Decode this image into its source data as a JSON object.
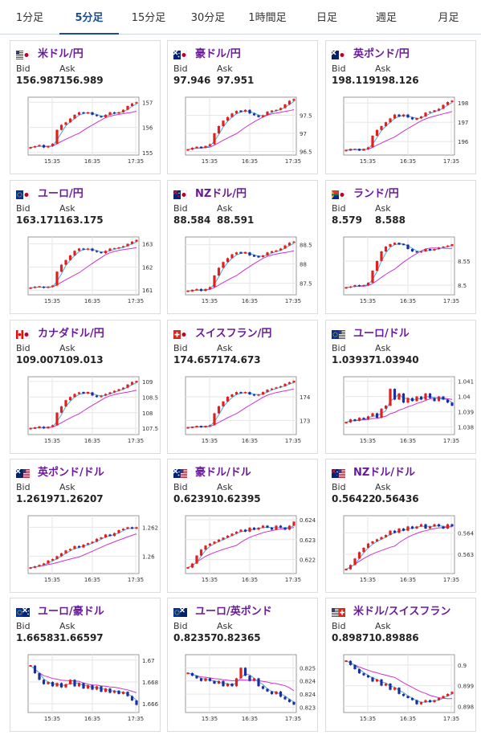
{
  "tabs": [
    "1分足",
    "5分足",
    "15分足",
    "30分足",
    "1時間足",
    "日足",
    "週足",
    "月足"
  ],
  "active_tab": "5分足",
  "bid_label": "Bid",
  "ask_label": "Ask",
  "colors": {
    "up": "#e0201c",
    "down": "#1c2fa0",
    "ma_short": "#4aa8e0",
    "ma_long": "#cc33cc",
    "accent": "#1f4e8c",
    "pair_text": "#6a1b9a"
  },
  "cards": [
    {
      "name": "米ドル/円",
      "flag": "us-jp-flag",
      "bid": "156.987",
      "ask": "156.989",
      "chart_data": {
        "type": "candlestick",
        "x_ticks": [
          "15:35",
          "16:35",
          "17:35"
        ],
        "y_ticks": [
          "155",
          "156",
          "157"
        ],
        "y_range": [
          154.9,
          157.2
        ],
        "levels": [
          155.2,
          155.25,
          155.3,
          155.2,
          155.25,
          155.35,
          155.9,
          156.1,
          156.2,
          156.35,
          156.5,
          156.6,
          156.55,
          156.6,
          156.5,
          156.45,
          156.4,
          156.5,
          156.6,
          156.55,
          156.6,
          156.7,
          156.85,
          156.95,
          157.0
        ]
      }
    },
    {
      "name": "豪ドル/円",
      "flag": "au-jp-flag",
      "bid": "97.946",
      "ask": "97.951",
      "chart_data": {
        "type": "candlestick",
        "x_ticks": [
          "15:35",
          "16:35",
          "17:35"
        ],
        "y_ticks": [
          "96.5",
          "97",
          "97.5"
        ],
        "y_range": [
          96.4,
          98.0
        ],
        "levels": [
          96.55,
          96.6,
          96.62,
          96.6,
          96.65,
          96.7,
          97.0,
          97.2,
          97.35,
          97.45,
          97.55,
          97.62,
          97.6,
          97.65,
          97.55,
          97.5,
          97.45,
          97.5,
          97.6,
          97.62,
          97.65,
          97.7,
          97.8,
          97.9,
          97.95
        ]
      }
    },
    {
      "name": "英ポンド/円",
      "flag": "uk-jp-flag",
      "bid": "198.119",
      "ask": "198.126",
      "chart_data": {
        "type": "candlestick",
        "x_ticks": [
          "15:35",
          "16:35",
          "17:35"
        ],
        "y_ticks": [
          "196",
          "197",
          "198"
        ],
        "y_range": [
          195.3,
          198.3
        ],
        "levels": [
          195.55,
          195.6,
          195.6,
          195.55,
          195.6,
          195.7,
          196.3,
          196.6,
          196.8,
          197.0,
          197.2,
          197.4,
          197.3,
          197.4,
          197.25,
          197.15,
          197.2,
          197.3,
          197.5,
          197.55,
          197.6,
          197.7,
          197.9,
          198.05,
          198.12
        ]
      }
    },
    {
      "name": "ユーロ/円",
      "flag": "eu-jp-flag",
      "bid": "163.171",
      "ask": "163.175",
      "chart_data": {
        "type": "candlestick",
        "x_ticks": [
          "15:35",
          "16:35",
          "17:35"
        ],
        "y_ticks": [
          "161",
          "162",
          "163"
        ],
        "y_range": [
          160.8,
          163.3
        ],
        "levels": [
          161.1,
          161.15,
          161.15,
          161.1,
          161.15,
          161.2,
          161.8,
          162.1,
          162.3,
          162.5,
          162.7,
          162.8,
          162.75,
          162.8,
          162.7,
          162.65,
          162.6,
          162.7,
          162.8,
          162.8,
          162.85,
          162.9,
          163.0,
          163.1,
          163.17
        ]
      }
    },
    {
      "name": "NZドル/円",
      "flag": "nz-jp-flag",
      "bid": "88.584",
      "ask": "88.591",
      "chart_data": {
        "type": "candlestick",
        "x_ticks": [
          "15:35",
          "16:35",
          "17:35"
        ],
        "y_ticks": [
          "87.5",
          "88",
          "88.5"
        ],
        "y_range": [
          87.2,
          88.7
        ],
        "levels": [
          87.3,
          87.32,
          87.35,
          87.3,
          87.35,
          87.4,
          87.7,
          87.9,
          88.05,
          88.15,
          88.25,
          88.3,
          88.28,
          88.3,
          88.22,
          88.2,
          88.18,
          88.22,
          88.3,
          88.32,
          88.35,
          88.4,
          88.48,
          88.55,
          88.58
        ]
      }
    },
    {
      "name": "ランド/円",
      "flag": "za-jp-flag",
      "bid": "8.579",
      "ask": "8.588",
      "chart_data": {
        "type": "candlestick",
        "x_ticks": [
          "15:35",
          "16:35",
          "17:35"
        ],
        "y_ticks": [
          "8.5",
          "8.55"
        ],
        "y_range": [
          8.48,
          8.6
        ],
        "levels": [
          8.495,
          8.497,
          8.5,
          8.498,
          8.5,
          8.505,
          8.53,
          8.55,
          8.57,
          8.58,
          8.585,
          8.587,
          8.585,
          8.584,
          8.575,
          8.57,
          8.568,
          8.57,
          8.575,
          8.572,
          8.575,
          8.578,
          8.58,
          8.582,
          8.584
        ]
      }
    },
    {
      "name": "カナダドル/円",
      "flag": "ca-jp-flag",
      "bid": "109.007",
      "ask": "109.013",
      "chart_data": {
        "type": "candlestick",
        "x_ticks": [
          "15:35",
          "16:35",
          "17:35"
        ],
        "y_ticks": [
          "107.5",
          "108",
          "108.5",
          "109"
        ],
        "y_range": [
          107.3,
          109.15
        ],
        "levels": [
          107.5,
          107.52,
          107.55,
          107.5,
          107.55,
          107.6,
          108.0,
          108.2,
          108.4,
          108.5,
          108.6,
          108.65,
          108.62,
          108.65,
          108.55,
          108.5,
          108.55,
          108.6,
          108.65,
          108.7,
          108.75,
          108.8,
          108.9,
          108.98,
          109.0
        ]
      }
    },
    {
      "name": "スイスフラン/円",
      "flag": "ch-jp-flag",
      "bid": "174.657",
      "ask": "174.673",
      "chart_data": {
        "type": "candlestick",
        "x_ticks": [
          "15:35",
          "16:35",
          "17:35"
        ],
        "y_ticks": [
          "173",
          "174"
        ],
        "y_range": [
          172.4,
          174.85
        ],
        "levels": [
          172.7,
          172.72,
          172.75,
          172.72,
          172.75,
          172.8,
          173.3,
          173.6,
          173.8,
          174.0,
          174.1,
          174.2,
          174.15,
          174.2,
          174.1,
          174.05,
          174.1,
          174.2,
          174.3,
          174.35,
          174.4,
          174.45,
          174.55,
          174.62,
          174.66
        ]
      }
    },
    {
      "name": "ユーロ/ドル",
      "flag": "eu-us-flag",
      "bid": "1.03937",
      "ask": "1.03940",
      "chart_data": {
        "type": "candlestick",
        "x_ticks": [
          "15:35",
          "16:35",
          "17:35"
        ],
        "y_ticks": [
          "1.038",
          "1.039",
          "1.04",
          "1.041"
        ],
        "y_range": [
          1.0375,
          1.0413
        ],
        "levels": [
          1.0383,
          1.0385,
          1.0384,
          1.0386,
          1.0385,
          1.0387,
          1.0389,
          1.0386,
          1.0392,
          1.0394,
          1.0405,
          1.0398,
          1.0402,
          1.0396,
          1.0399,
          1.0397,
          1.04,
          1.0398,
          1.0402,
          1.0399,
          1.0397,
          1.04,
          1.0398,
          1.0396,
          1.0394
        ]
      }
    },
    {
      "name": "英ポンド/ドル",
      "flag": "uk-us-flag",
      "bid": "1.26197",
      "ask": "1.26207",
      "chart_data": {
        "type": "candlestick",
        "x_ticks": [
          "15:35",
          "16:35",
          "17:35"
        ],
        "y_ticks": [
          "1.26",
          "1.262"
        ],
        "y_range": [
          1.2588,
          1.2628
        ],
        "levels": [
          1.2592,
          1.2593,
          1.2594,
          1.2595,
          1.2597,
          1.2598,
          1.26,
          1.2602,
          1.2604,
          1.2605,
          1.2607,
          1.2606,
          1.2608,
          1.2609,
          1.261,
          1.2612,
          1.2613,
          1.2615,
          1.2614,
          1.2616,
          1.2618,
          1.2619,
          1.262,
          1.2619,
          1.262
        ]
      }
    },
    {
      "name": "豪ドル/ドル",
      "flag": "au-us-flag",
      "bid": "0.62391",
      "ask": "0.62395",
      "chart_data": {
        "type": "candlestick",
        "x_ticks": [
          "15:35",
          "16:35",
          "17:35"
        ],
        "y_ticks": [
          "0.622",
          "0.623",
          "0.624"
        ],
        "y_range": [
          0.6213,
          0.6242
        ],
        "levels": [
          0.6216,
          0.6218,
          0.6222,
          0.6225,
          0.6227,
          0.6228,
          0.6229,
          0.623,
          0.6231,
          0.6232,
          0.6233,
          0.6234,
          0.6235,
          0.6234,
          0.6236,
          0.6235,
          0.6236,
          0.6237,
          0.6236,
          0.6235,
          0.6237,
          0.6236,
          0.6235,
          0.6237,
          0.6239
        ]
      }
    },
    {
      "name": "NZドル/ドル",
      "flag": "nz-us-flag",
      "bid": "0.56422",
      "ask": "0.56436",
      "chart_data": {
        "type": "candlestick",
        "x_ticks": [
          "15:35",
          "16:35",
          "17:35"
        ],
        "y_ticks": [
          "0.563",
          "0.564"
        ],
        "y_range": [
          0.5621,
          0.5648
        ],
        "levels": [
          0.5623,
          0.5625,
          0.5628,
          0.5631,
          0.5633,
          0.5635,
          0.5636,
          0.5637,
          0.5638,
          0.5639,
          0.5641,
          0.564,
          0.5642,
          0.5641,
          0.5643,
          0.5642,
          0.5643,
          0.5644,
          0.5642,
          0.5643,
          0.5644,
          0.5643,
          0.5642,
          0.5644,
          0.5643
        ]
      }
    },
    {
      "name": "ユーロ/豪ドル",
      "flag": "eu-au-flag",
      "bid": "1.66583",
      "ask": "1.66597",
      "chart_data": {
        "type": "candlestick",
        "x_ticks": [
          "15:35",
          "16:35",
          "17:35"
        ],
        "y_ticks": [
          "1.666",
          "1.668",
          "1.67"
        ],
        "y_range": [
          1.6652,
          1.6705
        ],
        "levels": [
          1.6695,
          1.6688,
          1.6682,
          1.6678,
          1.668,
          1.6676,
          1.6679,
          1.6675,
          1.6678,
          1.6682,
          1.6676,
          1.6679,
          1.6674,
          1.6677,
          1.6673,
          1.6676,
          1.6671,
          1.6674,
          1.667,
          1.6672,
          1.6669,
          1.6671,
          1.6667,
          1.6663,
          1.6659
        ]
      }
    },
    {
      "name": "ユーロ/英ポンド",
      "flag": "eu-uk-flag",
      "bid": "0.82357",
      "ask": "0.82365",
      "chart_data": {
        "type": "candlestick",
        "x_ticks": [
          "15:35",
          "16:35",
          "17:35"
        ],
        "y_ticks": [
          "0.8235",
          "0.824",
          "0.8245",
          "0.825"
        ],
        "y_range": [
          0.8233,
          0.8255
        ],
        "levels": [
          0.8248,
          0.8247,
          0.8246,
          0.8245,
          0.8246,
          0.8245,
          0.8244,
          0.8245,
          0.8243,
          0.8244,
          0.8243,
          0.8246,
          0.825,
          0.8247,
          0.8245,
          0.8246,
          0.8243,
          0.8242,
          0.8241,
          0.824,
          0.8241,
          0.8239,
          0.8238,
          0.8237,
          0.8236
        ]
      }
    },
    {
      "name": "米ドル/スイスフラン",
      "flag": "us-ch-flag",
      "bid": "0.89871",
      "ask": "0.89886",
      "chart_data": {
        "type": "candlestick",
        "x_ticks": [
          "15:35",
          "16:35",
          "17:35"
        ],
        "y_ticks": [
          "0.898",
          "0.899",
          "0.9"
        ],
        "y_range": [
          0.8977,
          0.9005
        ],
        "levels": [
          0.9002,
          0.9,
          0.8998,
          0.8996,
          0.8995,
          0.8994,
          0.8992,
          0.8993,
          0.899,
          0.8991,
          0.8988,
          0.8989,
          0.8986,
          0.8985,
          0.8984,
          0.8983,
          0.8981,
          0.8982,
          0.8983,
          0.8982,
          0.8983,
          0.8984,
          0.8985,
          0.8986,
          0.8987
        ]
      }
    }
  ]
}
